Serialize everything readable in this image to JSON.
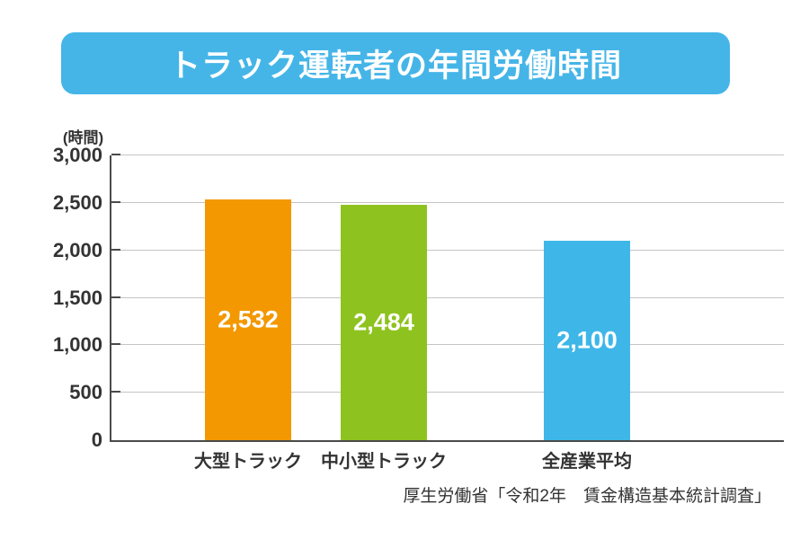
{
  "title": {
    "text": "トラック運転者の年間労働時間",
    "bg_color": "#45b5e8",
    "text_color": "#ffffff"
  },
  "chart_data": {
    "type": "bar",
    "title": "トラック運転者の年間労働時間",
    "unit_label": "(時間)",
    "categories": [
      "大型トラック",
      "中小型トラック",
      "全産業平均"
    ],
    "values": [
      2532,
      2484,
      2100
    ],
    "value_labels": [
      "2,532",
      "2,484",
      "2,100"
    ],
    "bar_colors": [
      "#f39800",
      "#8ec31f",
      "#3eb7e8"
    ],
    "ylim": [
      0,
      3000
    ],
    "yticks": [
      0,
      500,
      1000,
      1500,
      2000,
      2500,
      3000
    ],
    "ytick_labels": [
      "0",
      "500",
      "1,000",
      "1,500",
      "2,000",
      "2,500",
      "3,000"
    ],
    "grid": true,
    "legend": "none",
    "source": "厚生労働省「令和2年　賃金構造基本統計調査」"
  },
  "colors": {
    "axis": "#4a4a4a",
    "grid": "#c4c4c4",
    "text": "#333333"
  }
}
